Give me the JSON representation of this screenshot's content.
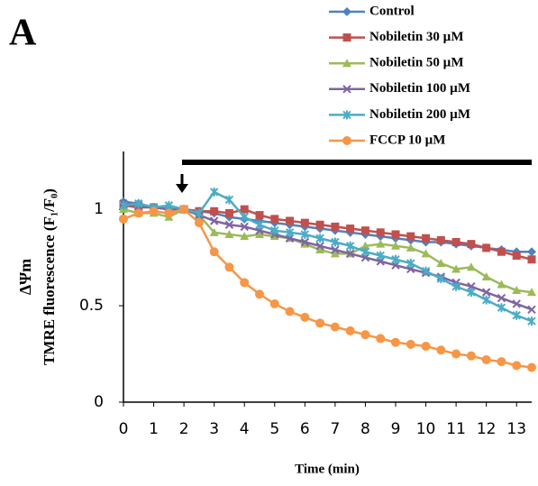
{
  "chart_data": {
    "type": "line",
    "panel_label": "A",
    "x_label": "Time (min)",
    "y_label": [
      "ΔΨm",
      "TMRE fluorescence (F₁/F₀)"
    ],
    "x": [
      0,
      0.5,
      1,
      1.5,
      2,
      2.5,
      3,
      3.5,
      4,
      4.5,
      5,
      5.5,
      6,
      6.5,
      7,
      7.5,
      8,
      8.5,
      9,
      9.5,
      10,
      10.5,
      11,
      11.5,
      12,
      12.5,
      13,
      13.5
    ],
    "xlim": [
      0,
      13.5
    ],
    "xticks": [
      0,
      1,
      2,
      3,
      4,
      5,
      6,
      7,
      8,
      9,
      10,
      11,
      12,
      13
    ],
    "ylim": [
      0,
      1.3
    ],
    "yticks": [
      0,
      0.5,
      1
    ],
    "series": [
      {
        "name": "Control",
        "color": "#4f81bd",
        "marker": "diamond",
        "values": [
          1.04,
          1.03,
          1.01,
          1.0,
          1.0,
          0.99,
          0.98,
          0.96,
          0.95,
          0.94,
          0.93,
          0.92,
          0.91,
          0.9,
          0.89,
          0.88,
          0.87,
          0.86,
          0.85,
          0.84,
          0.83,
          0.83,
          0.82,
          0.81,
          0.8,
          0.79,
          0.78,
          0.78
        ]
      },
      {
        "name": "Nobiletin 30 µM",
        "color": "#c0504d",
        "marker": "square",
        "values": [
          1.02,
          1.01,
          1.01,
          1.0,
          1.0,
          0.99,
          0.99,
          0.98,
          1.0,
          0.97,
          0.95,
          0.94,
          0.93,
          0.92,
          0.91,
          0.9,
          0.89,
          0.88,
          0.87,
          0.86,
          0.85,
          0.84,
          0.83,
          0.82,
          0.8,
          0.78,
          0.76,
          0.74
        ]
      },
      {
        "name": "Nobiletin 50 µM",
        "color": "#9bbb59",
        "marker": "triangle",
        "values": [
          1.0,
          0.98,
          0.98,
          0.96,
          1.0,
          0.97,
          0.88,
          0.87,
          0.86,
          0.87,
          0.86,
          0.85,
          0.82,
          0.79,
          0.77,
          0.77,
          0.81,
          0.82,
          0.81,
          0.8,
          0.77,
          0.72,
          0.69,
          0.7,
          0.65,
          0.61,
          0.58,
          0.57
        ]
      },
      {
        "name": "Nobiletin 100 µM",
        "color": "#8064a2",
        "marker": "cross",
        "values": [
          1.03,
          1.02,
          1.01,
          1.0,
          1.0,
          0.97,
          0.94,
          0.92,
          0.91,
          0.89,
          0.87,
          0.85,
          0.83,
          0.81,
          0.79,
          0.77,
          0.75,
          0.73,
          0.71,
          0.69,
          0.67,
          0.65,
          0.62,
          0.6,
          0.57,
          0.54,
          0.51,
          0.48
        ]
      },
      {
        "name": "Nobiletin 200 µM",
        "color": "#4bacc6",
        "marker": "star",
        "values": [
          1.02,
          1.03,
          1.01,
          1.02,
          1.0,
          0.98,
          1.09,
          1.05,
          0.96,
          0.92,
          0.89,
          0.88,
          0.87,
          0.85,
          0.83,
          0.81,
          0.78,
          0.76,
          0.74,
          0.72,
          0.68,
          0.64,
          0.6,
          0.57,
          0.53,
          0.49,
          0.45,
          0.42
        ]
      },
      {
        "name": "FCCP 10 µM",
        "color": "#f79646",
        "marker": "circle",
        "values": [
          0.95,
          0.98,
          0.99,
          0.98,
          1.0,
          0.93,
          0.78,
          0.7,
          0.62,
          0.56,
          0.51,
          0.47,
          0.44,
          0.41,
          0.39,
          0.37,
          0.35,
          0.33,
          0.31,
          0.3,
          0.29,
          0.27,
          0.25,
          0.24,
          0.22,
          0.21,
          0.19,
          0.18
        ]
      }
    ]
  }
}
